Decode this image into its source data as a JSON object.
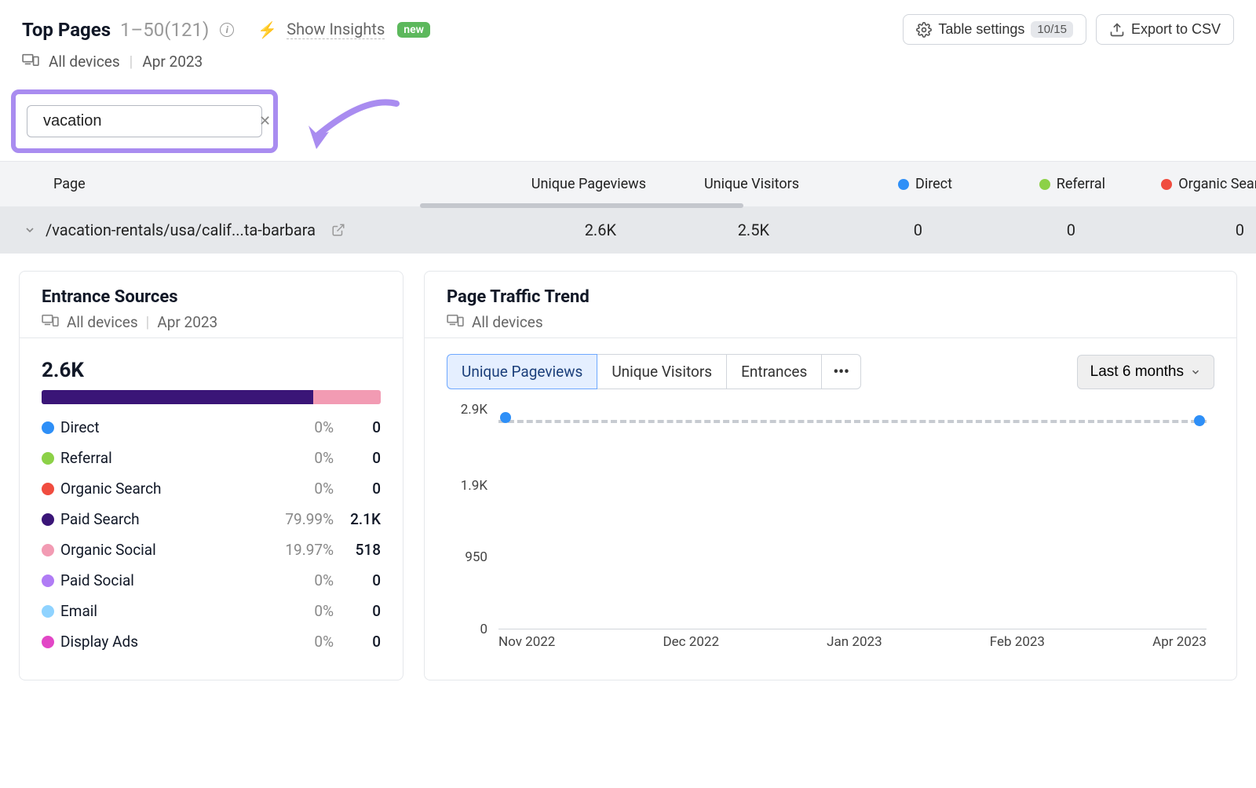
{
  "header": {
    "title": "Top Pages",
    "range": "1–50(121)",
    "insights_label": "Show Insights",
    "new_badge": "new",
    "devices_label": "All devices",
    "date_label": "Apr 2023",
    "table_settings_label": "Table settings",
    "table_settings_count": "10/15",
    "export_label": "Export to CSV"
  },
  "search": {
    "value": "vacation",
    "highlight_color": "#a98cf0"
  },
  "table": {
    "columns": {
      "page": "Page",
      "unique_pageviews": "Unique Pageviews",
      "unique_visitors": "Unique Visitors",
      "direct": "Direct",
      "referral": "Referral",
      "organic_search": "Organic Search"
    },
    "column_colors": {
      "direct": "#2e8ff7",
      "referral": "#8cd147",
      "organic_search": "#f04c3f"
    },
    "rows": [
      {
        "page": "/vacation-rentals/usa/calif...ta-barbara",
        "unique_pageviews": "2.6K",
        "unique_visitors": "2.5K",
        "direct": "0",
        "referral": "0",
        "organic_search": "0"
      }
    ]
  },
  "entrance_sources": {
    "title": "Entrance Sources",
    "devices_label": "All devices",
    "date_label": "Apr 2023",
    "total": "2.6K",
    "stack": [
      {
        "color": "#3a1577",
        "pct": 79.99
      },
      {
        "color": "#f29bb3",
        "pct": 19.97
      },
      {
        "color": "#ffffff",
        "pct": 0.04
      }
    ],
    "items": [
      {
        "label": "Direct",
        "color": "#2e8ff7",
        "pct": "0%",
        "value": "0"
      },
      {
        "label": "Referral",
        "color": "#8cd147",
        "pct": "0%",
        "value": "0"
      },
      {
        "label": "Organic Search",
        "color": "#f04c3f",
        "pct": "0%",
        "value": "0"
      },
      {
        "label": "Paid Search",
        "color": "#3a1577",
        "pct": "79.99%",
        "value": "2.1K"
      },
      {
        "label": "Organic Social",
        "color": "#f29bb3",
        "pct": "19.97%",
        "value": "518"
      },
      {
        "label": "Paid Social",
        "color": "#b07cf5",
        "pct": "0%",
        "value": "0"
      },
      {
        "label": "Email",
        "color": "#8fd3ff",
        "pct": "0%",
        "value": "0"
      },
      {
        "label": "Display Ads",
        "color": "#e246c6",
        "pct": "0%",
        "value": "0"
      }
    ]
  },
  "traffic_trend": {
    "title": "Page Traffic Trend",
    "devices_label": "All devices",
    "tabs": [
      "Unique Pageviews",
      "Unique Visitors",
      "Entrances"
    ],
    "active_tab": "Unique Pageviews",
    "more_label": "•••",
    "timerange_label": "Last 6 months",
    "y_ticks": [
      "2.9K",
      "1.9K",
      "950",
      "0"
    ],
    "y_values": [
      2900,
      1900,
      950,
      0
    ],
    "y_max": 2900,
    "x_labels": [
      "Nov 2022",
      "Dec 2022",
      "Jan 2023",
      "Feb 2023",
      "Apr 2023"
    ],
    "series": {
      "color": "#2e8ff7",
      "dash_color": "#c7cbd1",
      "points": [
        {
          "x_pct": 1,
          "y": 2800
        },
        {
          "x_pct": 99,
          "y": 2750
        }
      ],
      "dash_y": 2770
    }
  }
}
